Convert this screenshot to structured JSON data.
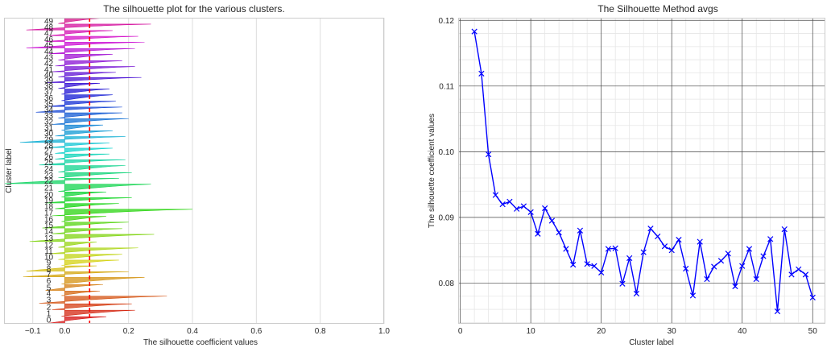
{
  "chart_data": [
    {
      "type": "silhouette",
      "title": "The silhouette plot for the various clusters.",
      "xlabel": "The silhouette coefficient values",
      "ylabel": "Cluster label",
      "xlim": [
        -0.19,
        1.0
      ],
      "xticks": [
        -0.1,
        0.0,
        0.2,
        0.4,
        0.6,
        0.8,
        1.0
      ],
      "xtick_labels": [
        "−0.1",
        "0.0",
        "0.2",
        "0.4",
        "0.6",
        "0.8",
        "1.0"
      ],
      "average_line": 0.078,
      "average_line_color": "#ff0000",
      "grid": "vertical",
      "cluster_labels": [
        "0",
        "1",
        "2",
        "3",
        "4",
        "5",
        "6",
        "7",
        "8",
        "9",
        "10",
        "11",
        "12",
        "13",
        "14",
        "15",
        "16",
        "17",
        "18",
        "19",
        "20",
        "21",
        "22",
        "23",
        "24",
        "25",
        "26",
        "27",
        "28",
        "29",
        "30",
        "31",
        "32",
        "33",
        "34",
        "35",
        "36",
        "37",
        "38",
        "39",
        "40",
        "41",
        "42",
        "43",
        "44",
        "45",
        "46",
        "47",
        "48",
        "49"
      ],
      "cluster_max": [
        0.13,
        0.22,
        0.21,
        0.32,
        0.11,
        0.12,
        0.25,
        0.2,
        0.1,
        0.17,
        0.18,
        0.23,
        0.1,
        0.28,
        0.18,
        0.2,
        0.13,
        0.4,
        0.17,
        0.21,
        0.13,
        0.27,
        0.17,
        0.21,
        0.19,
        0.19,
        0.14,
        0.15,
        0.14,
        0.19,
        0.15,
        0.12,
        0.2,
        0.18,
        0.18,
        0.16,
        0.15,
        0.14,
        0.11,
        0.24,
        0.16,
        0.22,
        0.18,
        0.15,
        0.22,
        0.25,
        0.23,
        0.15,
        0.27,
        0.11
      ],
      "cluster_min": [
        -0.05,
        -0.01,
        -0.04,
        -0.08,
        -0.01,
        -0.06,
        -0.01,
        -0.13,
        -0.12,
        -0.01,
        -0.02,
        -0.05,
        -0.02,
        -0.11,
        -0.04,
        -0.07,
        -0.01,
        -0.04,
        -0.03,
        -0.06,
        -0.01,
        -0.02,
        -0.19,
        -0.02,
        -0.02,
        -0.08,
        -0.03,
        -0.03,
        -0.05,
        -0.14,
        -0.03,
        -0.01,
        -0.04,
        -0.02,
        -0.09,
        -0.05,
        -0.01,
        -0.01,
        -0.02,
        -0.06,
        -0.02,
        -0.04,
        -0.03,
        -0.02,
        -0.05,
        -0.12,
        -0.06,
        -0.05,
        -0.12,
        -0.02
      ],
      "cluster_sizes": [
        10,
        9,
        9,
        11,
        7,
        9,
        10,
        8,
        8,
        8,
        8,
        9,
        8,
        11,
        8,
        9,
        8,
        10,
        8,
        8,
        8,
        11,
        8,
        8,
        10,
        8,
        8,
        8,
        7,
        9,
        8,
        8,
        9,
        8,
        8,
        8,
        9,
        8,
        8,
        8,
        7,
        8,
        8,
        9,
        8,
        9,
        8,
        8,
        9,
        8
      ]
    },
    {
      "type": "line",
      "title": "The Silhouette Method avgs",
      "xlabel": "Cluster label",
      "ylabel": "The silhouette coefficient values",
      "xlim": [
        -0.3,
        51.8
      ],
      "ylim": [
        0.0738,
        0.1204
      ],
      "xticks": [
        0,
        10,
        20,
        30,
        40,
        50
      ],
      "yticks": [
        0.08,
        0.09,
        0.1,
        0.11,
        0.12
      ],
      "ytick_labels": [
        "0.08",
        "0.09",
        "0.10",
        "0.11",
        "0.12"
      ],
      "grid": "major and minor",
      "marker": "x",
      "line_color": "#0000ff",
      "x": [
        2,
        3,
        4,
        5,
        6,
        7,
        8,
        9,
        10,
        11,
        12,
        13,
        14,
        15,
        16,
        17,
        18,
        19,
        20,
        21,
        22,
        23,
        24,
        25,
        26,
        27,
        28,
        29,
        30,
        31,
        32,
        33,
        34,
        35,
        36,
        37,
        38,
        39,
        40,
        41,
        42,
        43,
        44,
        45,
        46,
        47,
        48,
        49,
        50
      ],
      "y": [
        0.1183,
        0.1119,
        0.0996,
        0.0934,
        0.092,
        0.0924,
        0.0913,
        0.0917,
        0.0908,
        0.0875,
        0.0914,
        0.0895,
        0.0877,
        0.0852,
        0.0828,
        0.088,
        0.0829,
        0.0826,
        0.0816,
        0.0852,
        0.0853,
        0.0799,
        0.0838,
        0.0784,
        0.0847,
        0.0883,
        0.0871,
        0.0856,
        0.085,
        0.0866,
        0.0822,
        0.0781,
        0.0863,
        0.0806,
        0.0825,
        0.0834,
        0.0845,
        0.0795,
        0.0826,
        0.0852,
        0.0806,
        0.0841,
        0.0867,
        0.0757,
        0.0882,
        0.0813,
        0.0821,
        0.0813,
        0.0778
      ]
    }
  ]
}
